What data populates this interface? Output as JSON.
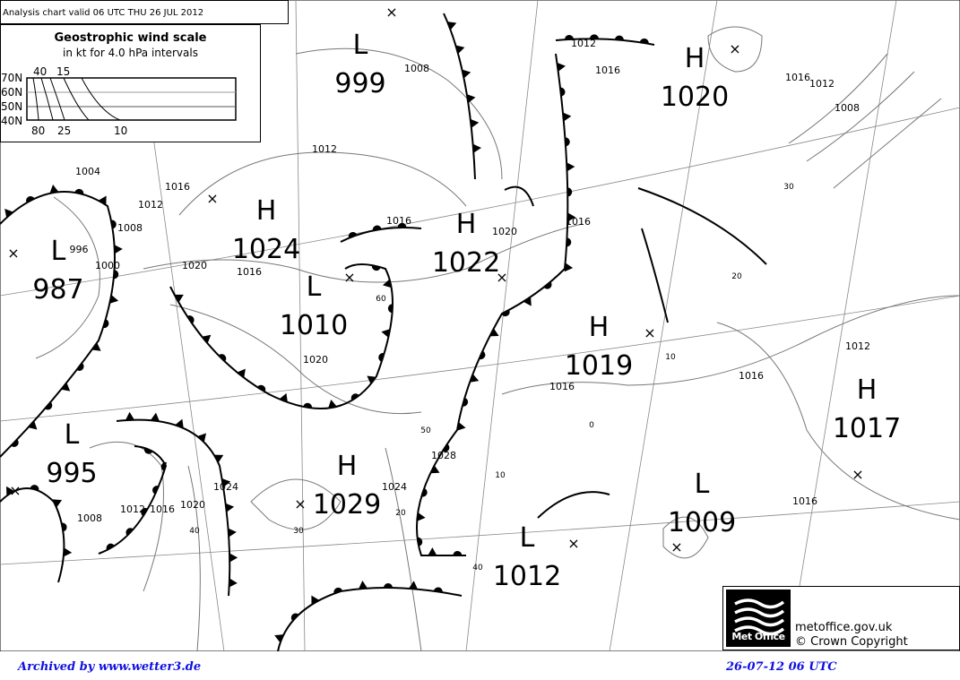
{
  "header": {
    "title": "Analysis chart  valid 06 UTC THU 26  JUL 2012"
  },
  "wind_scale": {
    "title": "Geostrophic wind scale",
    "subtitle": "in kt for 4.0 hPa intervals",
    "lat_labels": [
      "70N",
      "60N",
      "50N",
      "40N"
    ],
    "top_labels": [
      "40",
      "15"
    ],
    "bottom_labels": [
      "80",
      "25",
      "10"
    ]
  },
  "pressure_centers": [
    {
      "type": "L",
      "value": "999"
    },
    {
      "type": "H",
      "value": "1020"
    },
    {
      "type": "H",
      "value": "1024"
    },
    {
      "type": "L",
      "value": "987"
    },
    {
      "type": "H",
      "value": "1022"
    },
    {
      "type": "L",
      "value": "1010"
    },
    {
      "type": "H",
      "value": "1019"
    },
    {
      "type": "H",
      "value": "1017"
    },
    {
      "type": "L",
      "value": "995"
    },
    {
      "type": "H",
      "value": "1029"
    },
    {
      "type": "L",
      "value": "1009"
    },
    {
      "type": "L",
      "value": "1012"
    }
  ],
  "isobar_labels": [
    "1008",
    "1012",
    "1016",
    "1020",
    "1020",
    "1016",
    "1016",
    "1020",
    "1016",
    "1012",
    "1016",
    "1016",
    "1020",
    "1024",
    "1024",
    "1028",
    "1012",
    "1016",
    "1008",
    "1004",
    "1008",
    "1000",
    "996",
    "1012",
    "1016",
    "1016",
    "1012",
    "1008",
    "1016",
    "1012"
  ],
  "wind_labels": [
    "60",
    "50",
    "40",
    "30",
    "20",
    "10",
    "40",
    "0",
    "10",
    "20",
    "30"
  ],
  "colors": {
    "lines": "#000000",
    "isobars": "#777777",
    "footer_text": "#1010e0"
  },
  "logo": {
    "brand": "Met Office",
    "site": "metoffice.gov.uk",
    "copyright": "© Crown Copyright"
  },
  "footer": {
    "archive": "Archived by www.wetter3.de",
    "timestamp": "26-07-12 06 UTC"
  }
}
